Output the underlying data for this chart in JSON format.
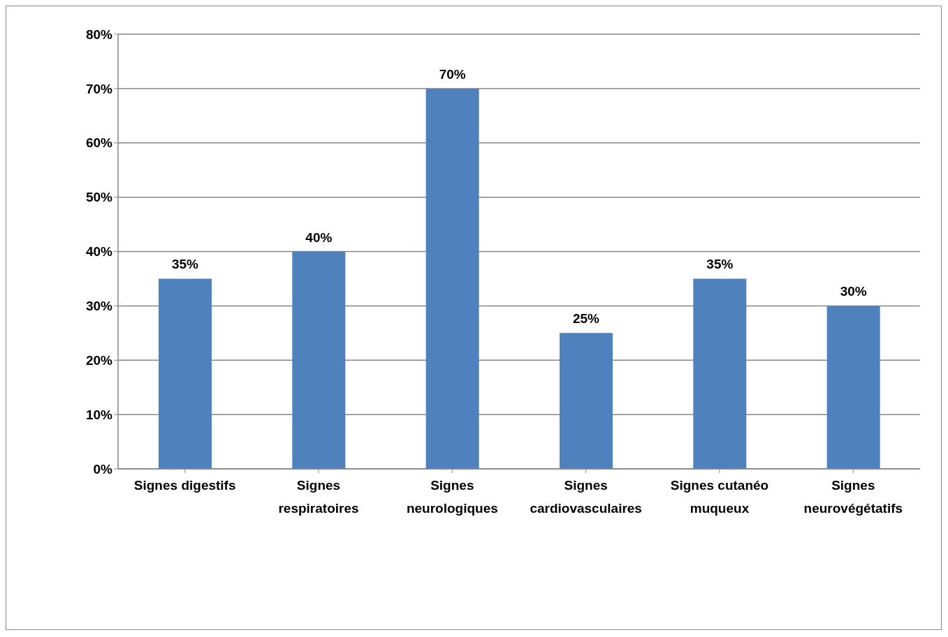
{
  "chart_data": {
    "type": "bar",
    "categories": [
      "Signes digestifs",
      "Signes respiratoires",
      "Signes neurologiques",
      "Signes cardiovasculaires",
      "Signes cutanéo muqueux",
      "Signes neurovégétatifs"
    ],
    "values": [
      35,
      40,
      70,
      25,
      35,
      30
    ],
    "value_labels": [
      "35%",
      "40%",
      "70%",
      "25%",
      "35%",
      "30%"
    ],
    "color": "#4f81bd",
    "ylim": [
      0,
      80
    ],
    "yticks": [
      {
        "value": 0,
        "label": "0%"
      },
      {
        "value": 10,
        "label": "10%"
      },
      {
        "value": 20,
        "label": "20%"
      },
      {
        "value": 30,
        "label": "30%"
      },
      {
        "value": 40,
        "label": "40%"
      },
      {
        "value": 50,
        "label": "50%"
      },
      {
        "value": 60,
        "label": "60%"
      },
      {
        "value": 70,
        "label": "70%"
      },
      {
        "value": 80,
        "label": "80%"
      }
    ],
    "grid": "y",
    "legend": false
  }
}
